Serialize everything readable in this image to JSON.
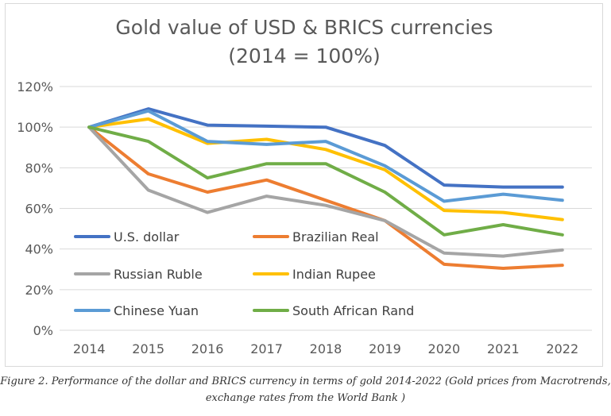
{
  "chart_data": {
    "type": "line",
    "title": "Gold value of  USD & BRICS currencies",
    "subtitle": "(2014 = 100%)",
    "xlabel": "",
    "ylabel": "",
    "x": [
      "2014",
      "2015",
      "2016",
      "2017",
      "2018",
      "2019",
      "2020",
      "2021",
      "2022"
    ],
    "ylim": [
      0,
      120
    ],
    "yticks": [
      0,
      20,
      40,
      60,
      80,
      100,
      120
    ],
    "ytick_labels": [
      "0%",
      "20%",
      "40%",
      "60%",
      "80%",
      "100%",
      "120%"
    ],
    "grid": "horizontal",
    "legend": "inside-lower-left",
    "series": [
      {
        "name": "U.S. dollar",
        "color": "#4472c4",
        "values": [
          100,
          109,
          101,
          100.5,
          100,
          91,
          71.5,
          70.5,
          70.5
        ]
      },
      {
        "name": "Brazilian Real",
        "color": "#ed7d31",
        "values": [
          100,
          77,
          68,
          74,
          64,
          54,
          32.5,
          30.5,
          32
        ]
      },
      {
        "name": "Russian Ruble",
        "color": "#a5a5a5",
        "values": [
          100,
          69,
          58,
          66,
          61.5,
          54,
          38,
          36.5,
          39.5
        ]
      },
      {
        "name": "Indian Rupee",
        "color": "#ffc000",
        "values": [
          100,
          104,
          92,
          94,
          89,
          79,
          59,
          58,
          54.5
        ]
      },
      {
        "name": "Chinese Yuan",
        "color": "#5b9bd5",
        "values": [
          100,
          108,
          93,
          91.5,
          93,
          81,
          63.5,
          67,
          64
        ]
      },
      {
        "name": "South African Rand",
        "color": "#70ad47",
        "values": [
          100,
          93,
          75,
          82,
          82,
          68,
          47,
          52,
          47
        ]
      }
    ]
  },
  "caption": {
    "line1": "Figure 2. Performance of the dollar and BRICS currency in terms of gold 2014-2022 (Gold prices from Macrotrends,",
    "line2": "exchange rates from the World Bank )"
  }
}
